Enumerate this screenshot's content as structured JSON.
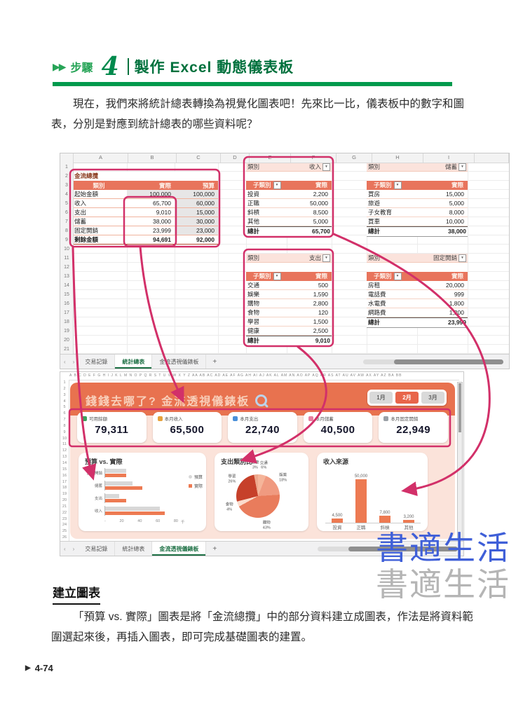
{
  "icons": {
    "filter": "▼",
    "dropdown": "▼",
    "step_marker": "▶▶",
    "footer_arrow": "▶"
  },
  "page": {
    "step_label": "步驟",
    "step_number": "4",
    "title": "製作 Excel 動態儀表板",
    "intro": "現在，我們來將統計總表轉換為視覺化圖表吧！先來比一比，儀表板中的數字和圖表，分別是對應到統計總表的哪些資料呢？",
    "section_heading": "建立圖表",
    "body_text": "「預算 vs. 實際」圖表是將「金流總攬」中的部分資料建立成圖表，作法是將資料範圍選起來後，再插入圖表，即可完成基礎圖表的建置。",
    "page_number": "4-74",
    "watermark_blue": "書適生活",
    "watermark_gray": "書適生活"
  },
  "sheet_tabs": {
    "nav_left": "‹",
    "nav_right": "›",
    "items": [
      "交易記錄",
      "統計總表",
      "金流透視儀錶板"
    ],
    "add": "+"
  },
  "sheet1": {
    "columns": [
      "A",
      "B",
      "C",
      "D",
      "E",
      "F",
      "G",
      "H",
      "I"
    ],
    "labels": {
      "cat": "類別",
      "subcat": "子類別",
      "actual": "實際",
      "total": "總計"
    },
    "overview": {
      "title": "金流總攬",
      "headers": [
        "類別",
        "實際",
        "預算"
      ],
      "rows": [
        [
          "起始金額",
          "100,000",
          "100,000"
        ],
        [
          "收入",
          "65,700",
          "60,000"
        ],
        [
          "支出",
          "9,010",
          "15,000"
        ],
        [
          "儲蓄",
          "38,000",
          "30,000"
        ],
        [
          "固定開銷",
          "23,999",
          "23,000"
        ],
        [
          "剩餘金額",
          "94,691",
          "92,000"
        ]
      ]
    },
    "income": {
      "category": "收入",
      "rows": [
        [
          "投資",
          "2,200"
        ],
        [
          "正職",
          "50,000"
        ],
        [
          "斜槓",
          "8,500"
        ],
        [
          "其他",
          "5,000"
        ]
      ],
      "total": [
        "總計",
        "65,700"
      ]
    },
    "savings": {
      "category": "儲蓄",
      "rows": [
        [
          "買房",
          "15,000"
        ],
        [
          "旅遊",
          "5,000"
        ],
        [
          "子女教育",
          "8,000"
        ],
        [
          "買車",
          "10,000"
        ]
      ],
      "total": [
        "總計",
        "38,000"
      ]
    },
    "expense": {
      "category": "支出",
      "rows": [
        [
          "交通",
          "500"
        ],
        [
          "娛樂",
          "1,590"
        ],
        [
          "購物",
          "2,800"
        ],
        [
          "食物",
          "120"
        ],
        [
          "學習",
          "1,500"
        ],
        [
          "健康",
          "2,500"
        ]
      ],
      "total": [
        "總計",
        "9,010"
      ]
    },
    "fixed": {
      "category": "固定開銷",
      "rows": [
        [
          "房租",
          "20,000"
        ],
        [
          "電話費",
          "999"
        ],
        [
          "水電費",
          "1,800"
        ],
        [
          "網路費",
          "1,200"
        ]
      ],
      "total": [
        "總計",
        "23,999"
      ]
    }
  },
  "dashboard": {
    "column_letters": "A B C D E F G H I J K L M N O P Q R S T U V W X Y Z AA AB AC AD AE AF AG AH AI AJ AK AL AM AN AO AP AQ AR AS AT AU AV AW AX AY AZ BA BB",
    "title": "錢錢去哪了? 金流透視儀錶板",
    "months": [
      "1月",
      "2月",
      "3月"
    ],
    "active_month": "2月",
    "cards": [
      {
        "icon": "sprout-icon",
        "color": "#3aa35c",
        "label": "可用餘額",
        "value": "79,311"
      },
      {
        "icon": "moneybag-icon",
        "color": "#e6a23c",
        "label": "本月收入",
        "value": "65,500"
      },
      {
        "icon": "card-icon",
        "color": "#4a90d9",
        "label": "本月支出",
        "value": "22,740"
      },
      {
        "icon": "piggy-icon",
        "color": "#e87fa0",
        "label": "本月儲蓄",
        "value": "40,500"
      },
      {
        "icon": "receipt-icon",
        "color": "#9aa0a6",
        "label": "本月固定開銷",
        "value": "22,949"
      }
    ],
    "accent_color": "#e8724f",
    "body_color": "#fbe3da",
    "annotation_color": "#d23069"
  },
  "chart_data": [
    {
      "type": "bar",
      "orientation": "horizontal",
      "title": "預算 vs. 實際",
      "categories": [
        "固定開銷",
        "儲蓄",
        "支出",
        "收入"
      ],
      "series": [
        {
          "name": "預算",
          "color": "#d8d8d8",
          "values": [
            23,
            30,
            15,
            60
          ]
        },
        {
          "name": "實際",
          "color": "#ed7a52",
          "values": [
            22.9,
            40.5,
            22.7,
            65.5
          ]
        }
      ],
      "xmax": 80,
      "xticks": [
        "-",
        "20",
        "40",
        "60",
        "80"
      ],
      "x_unit": "千",
      "legend_position": "right"
    },
    {
      "type": "pie",
      "title": "支出類別比",
      "slices": [
        {
          "label": "交通",
          "pct": 6,
          "color": "#f5b59a"
        },
        {
          "label": "娛樂",
          "pct": 18,
          "color": "#f09a80"
        },
        {
          "label": "購物",
          "pct": 43,
          "color": "#e97c5c"
        },
        {
          "label": "食物",
          "pct": 4,
          "color": "#fbdccd"
        },
        {
          "label": "學習",
          "pct": 26,
          "color": "#c6402a"
        },
        {
          "label": "健康",
          "pct": 3,
          "color": "#eda88d"
        }
      ]
    },
    {
      "type": "bar",
      "orientation": "vertical",
      "title": "收入來源",
      "categories": [
        "投資",
        "正職",
        "斜槓",
        "其他"
      ],
      "values": [
        4500,
        50000,
        7800,
        3200
      ],
      "value_labels": [
        "4,500",
        "50,000",
        "7,800",
        "3,200"
      ],
      "ymax": 50000,
      "color": "#ed7a52"
    }
  ]
}
